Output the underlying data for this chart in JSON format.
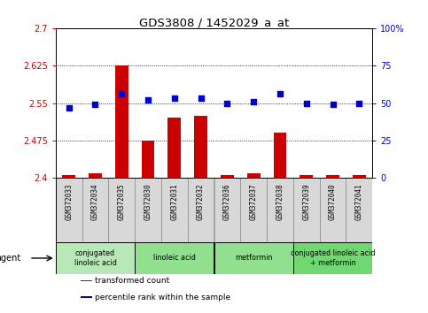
{
  "title": "GDS3808 / 1452029_a_at",
  "samples": [
    "GSM372033",
    "GSM372034",
    "GSM372035",
    "GSM372030",
    "GSM372031",
    "GSM372032",
    "GSM372036",
    "GSM372037",
    "GSM372038",
    "GSM372039",
    "GSM372040",
    "GSM372041"
  ],
  "transformed_counts": [
    2.405,
    2.41,
    2.625,
    2.475,
    2.52,
    2.525,
    2.405,
    2.41,
    2.49,
    2.405,
    2.405,
    2.405
  ],
  "percentile_ranks": [
    47,
    49,
    56,
    52,
    53,
    53,
    50,
    51,
    56,
    50,
    49,
    50
  ],
  "bar_bottom": 2.4,
  "ylim_left": [
    2.4,
    2.7
  ],
  "ylim_right": [
    0,
    100
  ],
  "yticks_left": [
    2.4,
    2.475,
    2.55,
    2.625,
    2.7
  ],
  "yticks_right": [
    0,
    25,
    50,
    75,
    100
  ],
  "ytick_labels_left": [
    "2.4",
    "2.475",
    "2.55",
    "2.625",
    "2.7"
  ],
  "ytick_labels_right": [
    "0",
    "25",
    "50",
    "75",
    "100%"
  ],
  "hlines": [
    2.475,
    2.55,
    2.625
  ],
  "bar_color": "#cc0000",
  "dot_color": "#0000cc",
  "agent_groups": [
    {
      "label": "conjugated\nlinoleic acid",
      "start": 0,
      "end": 3,
      "color": "#b8e8b8"
    },
    {
      "label": "linoleic acid",
      "start": 3,
      "end": 6,
      "color": "#90e090"
    },
    {
      "label": "metformin",
      "start": 6,
      "end": 9,
      "color": "#90e090"
    },
    {
      "label": "conjugated linoleic acid\n+ metformin",
      "start": 9,
      "end": 12,
      "color": "#70d870"
    }
  ],
  "legend_items": [
    {
      "label": "transformed count",
      "color": "#cc0000"
    },
    {
      "label": "percentile rank within the sample",
      "color": "#0000cc"
    }
  ],
  "agent_label": "agent",
  "sample_bg_color": "#d8d8d8",
  "tick_color_left": "#cc0000",
  "tick_color_right": "#0000cc",
  "bar_width": 0.5
}
